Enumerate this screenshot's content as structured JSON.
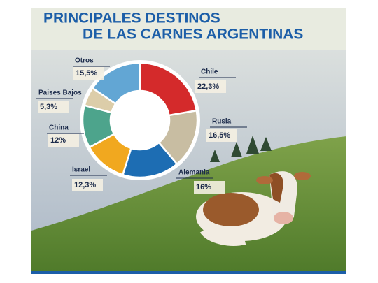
{
  "chart_data": {
    "type": "donut",
    "title": [
      "PRINCIPALES DESTINOS",
      "DE LAS CARNES ARGENTINAS"
    ],
    "categories": [
      "Chile",
      "Rusia",
      "Alemania",
      "Israel",
      "China",
      "Paises Bajos",
      "Otros"
    ],
    "values": [
      22.3,
      16.5,
      16,
      12.3,
      12,
      5.3,
      15.5
    ],
    "value_labels": [
      "22,3%",
      "16,5%",
      "16%",
      "12,3%",
      "12%",
      "5,3%",
      "15,5%"
    ],
    "colors": [
      "#d42a2b",
      "#c8bda2",
      "#1d6db3",
      "#f1a81f",
      "#4da48c",
      "#dccda9",
      "#62a6d4"
    ]
  }
}
